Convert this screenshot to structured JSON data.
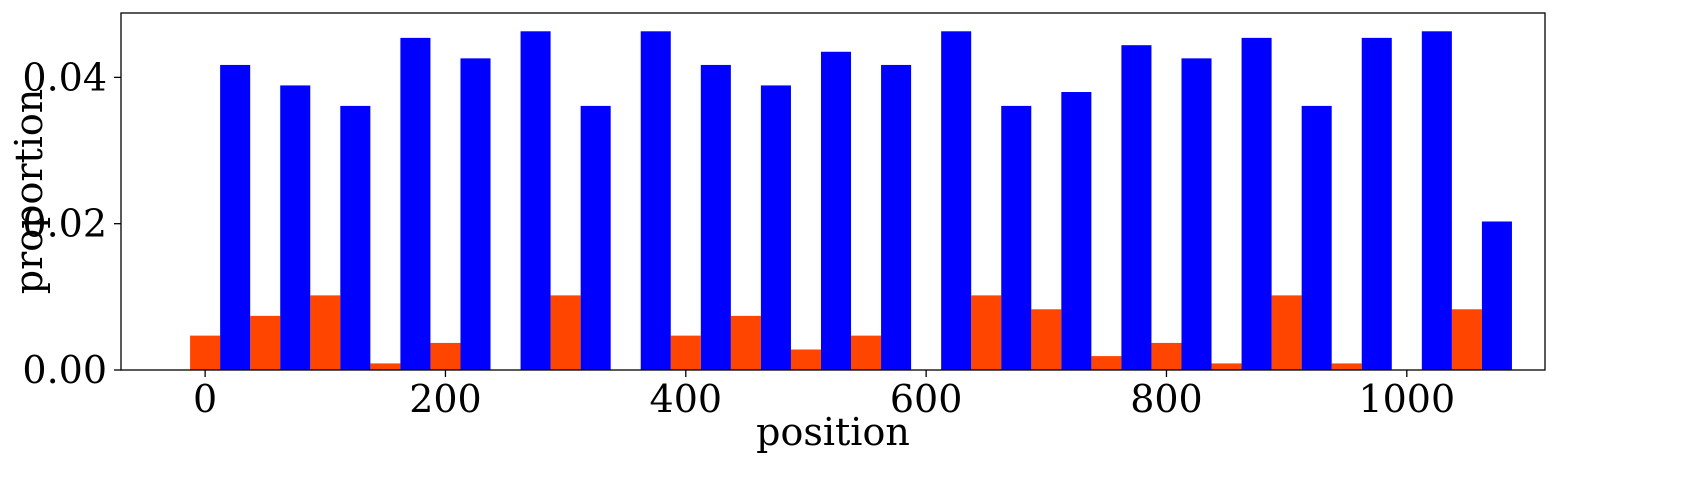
{
  "chart_data": {
    "type": "bar",
    "title": "",
    "xlabel": "position",
    "ylabel": "proportion",
    "xlim": [
      -70,
      1115
    ],
    "ylim": [
      0,
      0.0488
    ],
    "bar_width": 25,
    "xticks": [
      {
        "value": 0,
        "label": "0"
      },
      {
        "value": 200,
        "label": "200"
      },
      {
        "value": 400,
        "label": "400"
      },
      {
        "value": 600,
        "label": "600"
      },
      {
        "value": 800,
        "label": "800"
      },
      {
        "value": 1000,
        "label": "1000"
      }
    ],
    "yticks": [
      {
        "value": 0.0,
        "label": "0.00"
      },
      {
        "value": 0.02,
        "label": "0.02"
      },
      {
        "value": 0.04,
        "label": "0.04"
      }
    ],
    "series": [
      {
        "color": "#ff4500",
        "x": [
          0,
          50,
          100,
          150,
          200,
          250,
          300,
          350,
          400,
          450,
          500,
          550,
          600,
          650,
          700,
          750,
          800,
          850,
          900,
          950,
          1000,
          1050
        ],
        "values": [
          0.0047,
          0.0074,
          0.0102,
          0.0009,
          0.0037,
          0.0,
          0.0102,
          0.0,
          0.0047,
          0.0074,
          0.0028,
          0.0047,
          0.0,
          0.0102,
          0.0083,
          0.0019,
          0.0037,
          0.0009,
          0.0102,
          0.0009,
          0.0,
          0.0083
        ]
      },
      {
        "color": "#0000ff",
        "x": [
          25,
          75,
          125,
          175,
          225,
          275,
          325,
          375,
          425,
          475,
          525,
          575,
          625,
          675,
          725,
          775,
          825,
          875,
          925,
          975,
          1025,
          1075
        ],
        "values": [
          0.0417,
          0.0389,
          0.0361,
          0.0454,
          0.0426,
          0.0463,
          0.0361,
          0.0463,
          0.0417,
          0.0389,
          0.0435,
          0.0417,
          0.0463,
          0.0361,
          0.038,
          0.0444,
          0.0426,
          0.0454,
          0.0361,
          0.0454,
          0.0463,
          0.0203
        ]
      }
    ]
  }
}
